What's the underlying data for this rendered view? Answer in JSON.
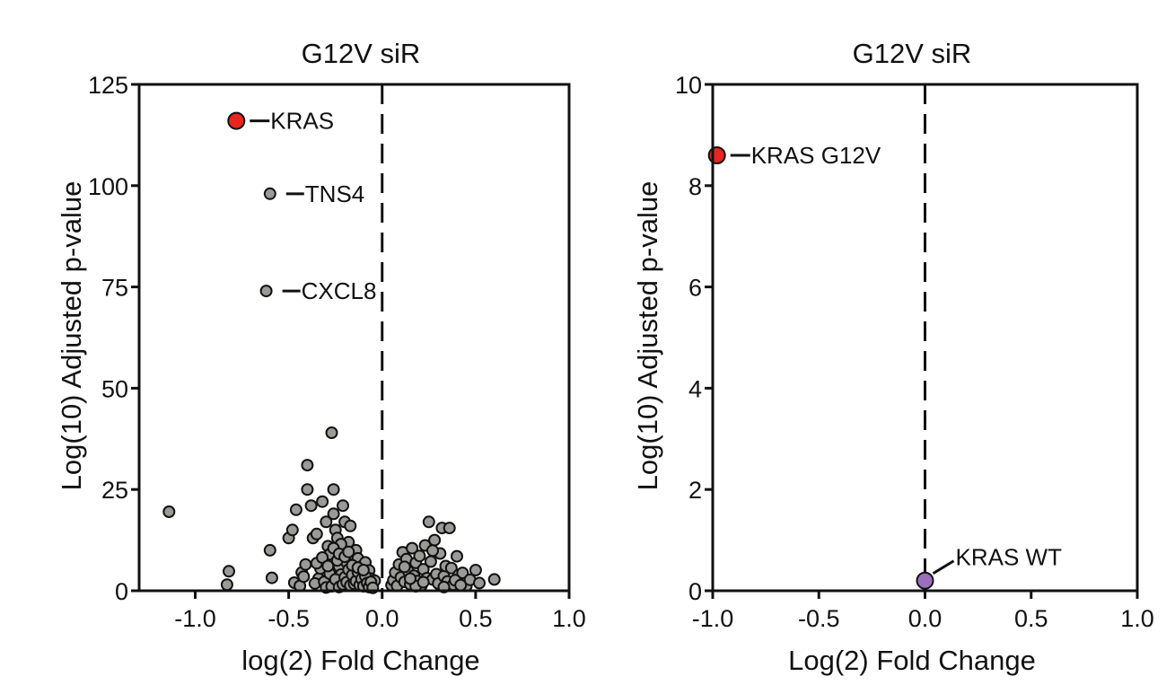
{
  "chart_data": [
    {
      "type": "scatter",
      "title": "G12V siR",
      "xlabel": "log(2) Fold Change",
      "ylabel": "Log(10) Adjusted p-value",
      "xlim": [
        -1.3,
        1.0
      ],
      "ylim": [
        0,
        125
      ],
      "x_ticks": [
        -1.0,
        -0.5,
        0.0,
        0.5,
        1.0
      ],
      "x_tick_labels": [
        "-1.0",
        "-0.5",
        "0.0",
        "0.5",
        "1.0"
      ],
      "y_ticks": [
        0,
        25,
        50,
        75,
        100,
        125
      ],
      "y_tick_labels": [
        "0",
        "25",
        "50",
        "75",
        "100",
        "125"
      ],
      "reference_line_x": 0,
      "highlight_color": "#e8251f",
      "point_color": "#9a9a96",
      "labeled_points": [
        {
          "label": "KRAS",
          "x": -0.78,
          "y": 116,
          "color": "#e8251f",
          "size": "large"
        },
        {
          "label": "TNS4",
          "x": -0.6,
          "y": 98,
          "color": "#9a9a96",
          "size": "small"
        },
        {
          "label": "CXCL8",
          "x": -0.62,
          "y": 74,
          "color": "#9a9a96",
          "size": "small"
        }
      ],
      "points": [
        [
          -1.14,
          19.5
        ],
        [
          -0.82,
          4.8
        ],
        [
          -0.83,
          1.5
        ],
        [
          -0.6,
          10
        ],
        [
          -0.59,
          3.2
        ],
        [
          -0.5,
          13
        ],
        [
          -0.48,
          15
        ],
        [
          -0.46,
          20
        ],
        [
          -0.43,
          4.5
        ],
        [
          -0.41,
          6.5
        ],
        [
          -0.4,
          31
        ],
        [
          -0.38,
          21
        ],
        [
          -0.4,
          25
        ],
        [
          -0.37,
          13
        ],
        [
          -0.35,
          14
        ],
        [
          -0.34,
          3
        ],
        [
          -0.32,
          22
        ],
        [
          -0.3,
          17
        ],
        [
          -0.29,
          11
        ],
        [
          -0.28,
          9
        ],
        [
          -0.27,
          39
        ],
        [
          -0.26,
          25
        ],
        [
          -0.26,
          19
        ],
        [
          -0.25,
          15
        ],
        [
          -0.24,
          13
        ],
        [
          -0.23,
          6
        ],
        [
          -0.22,
          4
        ],
        [
          -0.21,
          21
        ],
        [
          -0.2,
          17
        ],
        [
          -0.19,
          7
        ],
        [
          -0.18,
          12
        ],
        [
          -0.17,
          16
        ],
        [
          -0.16,
          9
        ],
        [
          -0.15,
          5
        ],
        [
          -0.14,
          10
        ],
        [
          -0.13,
          8
        ],
        [
          -0.12,
          3
        ],
        [
          -0.11,
          6
        ],
        [
          -0.1,
          4
        ],
        [
          -0.09,
          7
        ],
        [
          -0.08,
          2
        ],
        [
          -0.07,
          5
        ],
        [
          -0.06,
          3
        ],
        [
          -0.05,
          1.5
        ],
        [
          -0.04,
          2.5
        ],
        [
          -0.47,
          2
        ],
        [
          -0.44,
          1.2
        ],
        [
          -0.42,
          3.5
        ],
        [
          -0.36,
          1.8
        ],
        [
          -0.33,
          5.5
        ],
        [
          -0.31,
          2.2
        ],
        [
          -0.3,
          0.8
        ],
        [
          -0.28,
          4.2
        ],
        [
          -0.27,
          1.1
        ],
        [
          -0.25,
          2.8
        ],
        [
          -0.24,
          7.5
        ],
        [
          -0.23,
          0.9
        ],
        [
          -0.22,
          11.5
        ],
        [
          -0.21,
          1.6
        ],
        [
          -0.2,
          3.3
        ],
        [
          -0.19,
          2.1
        ],
        [
          -0.18,
          5.2
        ],
        [
          -0.17,
          1.3
        ],
        [
          -0.16,
          3.9
        ],
        [
          -0.15,
          1.7
        ],
        [
          -0.14,
          2.4
        ],
        [
          -0.13,
          4.6
        ],
        [
          -0.12,
          1.4
        ],
        [
          -0.11,
          2.9
        ],
        [
          -0.1,
          1.1
        ],
        [
          -0.09,
          3.6
        ],
        [
          -0.08,
          1.9
        ],
        [
          -0.07,
          0.9
        ],
        [
          -0.06,
          2.2
        ],
        [
          -0.05,
          0.7
        ],
        [
          -0.35,
          6.8
        ],
        [
          -0.32,
          8.2
        ],
        [
          -0.29,
          6.1
        ],
        [
          -0.26,
          10.5
        ],
        [
          -0.23,
          9.1
        ],
        [
          -0.2,
          8.4
        ],
        [
          -0.18,
          9.6
        ],
        [
          -0.16,
          6.3
        ],
        [
          -0.13,
          5.7
        ],
        [
          -0.1,
          5.1
        ],
        [
          0.05,
          1.4
        ],
        [
          0.06,
          2.6
        ],
        [
          0.07,
          4.5
        ],
        [
          0.08,
          1.2
        ],
        [
          0.09,
          6.5
        ],
        [
          0.1,
          3.3
        ],
        [
          0.11,
          9.5
        ],
        [
          0.12,
          2.2
        ],
        [
          0.13,
          7.8
        ],
        [
          0.14,
          4.8
        ],
        [
          0.15,
          1.6
        ],
        [
          0.16,
          10.5
        ],
        [
          0.17,
          3.7
        ],
        [
          0.18,
          6.9
        ],
        [
          0.19,
          2.4
        ],
        [
          0.2,
          8.6
        ],
        [
          0.21,
          1.3
        ],
        [
          0.22,
          5.3
        ],
        [
          0.23,
          11.2
        ],
        [
          0.24,
          3.1
        ],
        [
          0.25,
          17
        ],
        [
          0.26,
          7.2
        ],
        [
          0.27,
          2.8
        ],
        [
          0.28,
          12.5
        ],
        [
          0.29,
          4.1
        ],
        [
          0.3,
          1.8
        ],
        [
          0.31,
          9.2
        ],
        [
          0.32,
          15.5
        ],
        [
          0.33,
          3.6
        ],
        [
          0.34,
          6.1
        ],
        [
          0.35,
          2.3
        ],
        [
          0.36,
          15.5
        ],
        [
          0.37,
          5.6
        ],
        [
          0.38,
          1.5
        ],
        [
          0.4,
          8.5
        ],
        [
          0.41,
          3.9
        ],
        [
          0.43,
          4.4
        ],
        [
          0.45,
          1.2
        ],
        [
          0.47,
          2.7
        ],
        [
          0.5,
          5.1
        ],
        [
          0.52,
          1.9
        ],
        [
          0.6,
          2.8
        ],
        [
          0.12,
          5.9
        ],
        [
          0.18,
          1.1
        ],
        [
          0.27,
          9.9
        ],
        [
          0.22,
          2.1
        ],
        [
          0.33,
          0.9
        ],
        [
          0.39,
          2.6
        ],
        [
          0.15,
          3.0
        ],
        [
          0.42,
          1.4
        ]
      ]
    },
    {
      "type": "scatter",
      "title": "G12V siR",
      "xlabel": "Log(2) Fold Change",
      "ylabel": "Log(10) Adjusted p-value",
      "xlim": [
        -1.0,
        1.0
      ],
      "ylim": [
        0,
        10
      ],
      "x_ticks": [
        -1.0,
        -0.5,
        0.0,
        0.5,
        1.0
      ],
      "x_tick_labels": [
        "-1.0",
        "-0.5",
        "0.0",
        "0.5",
        "1.0"
      ],
      "y_ticks": [
        0,
        2,
        4,
        6,
        8,
        10
      ],
      "y_tick_labels": [
        "0",
        "2",
        "4",
        "6",
        "8",
        "10"
      ],
      "reference_line_x": 0,
      "labeled_points": [
        {
          "label": "KRAS G12V",
          "x": -0.98,
          "y": 8.6,
          "color": "#e8251f",
          "size": "large"
        },
        {
          "label": "KRAS WT",
          "x": 0.0,
          "y": 0.2,
          "color": "#9a6fbd",
          "size": "large"
        }
      ],
      "points": []
    }
  ]
}
